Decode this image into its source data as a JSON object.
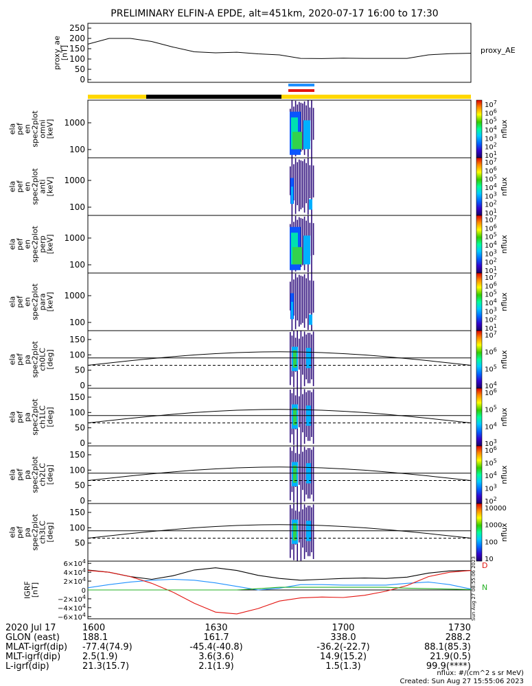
{
  "title": "PRELIMINARY ELFIN-A EPDE, alt=451km, 2020-07-17 16:00 to 17:30",
  "colors": {
    "yellow": "#FFD700",
    "black": "#000000",
    "blue": "#1E90FF",
    "red": "#E3130F",
    "green": "#22B022"
  },
  "proxy_ae": {
    "ylabel": [
      "proxy_ae",
      "[nT]"
    ],
    "yticks": [
      "250",
      "200",
      "150",
      "100",
      "50",
      "0"
    ],
    "ylim": [
      0,
      260
    ],
    "series_label": "proxy_AE",
    "x": [
      0,
      5,
      10,
      15,
      20,
      25,
      30,
      35,
      40,
      45,
      50,
      55,
      60,
      65,
      70,
      75,
      80,
      85,
      90
    ],
    "y": [
      172,
      200,
      200,
      185,
      158,
      135,
      130,
      133,
      125,
      120,
      103,
      102,
      104,
      103,
      103,
      103,
      120,
      126,
      128
    ]
  },
  "spectrum_panels": [
    {
      "name": "omni",
      "ylabel": [
        "ela",
        "pef",
        "en",
        "spec2plot",
        "omni",
        "[keV]"
      ],
      "yticks": [
        "1000",
        "100"
      ],
      "cb_ticks": [
        "10^7",
        "10^6",
        "10^5",
        "10^4",
        "10^3",
        "10^2",
        "10^1"
      ],
      "cb_unit": "nflux"
    },
    {
      "name": "anti",
      "ylabel": [
        "ela",
        "pef",
        "en",
        "spec2plot",
        "anti",
        "[keV]"
      ],
      "yticks": [
        "1000",
        "100"
      ],
      "cb_ticks": [
        "10^7",
        "10^6",
        "10^5",
        "10^4",
        "10^3",
        "10^2",
        "10^1"
      ],
      "cb_unit": "nflux"
    },
    {
      "name": "perp",
      "ylabel": [
        "ela",
        "pef",
        "en",
        "spec2plot",
        "perp",
        "[keV]"
      ],
      "yticks": [
        "1000",
        "100"
      ],
      "cb_ticks": [
        "10^7",
        "10^6",
        "10^5",
        "10^4",
        "10^3",
        "10^2",
        "10^1"
      ],
      "cb_unit": "nflux"
    },
    {
      "name": "para",
      "ylabel": [
        "ela",
        "pef",
        "en",
        "spec2plot",
        "para",
        "[keV]"
      ],
      "yticks": [
        "1000",
        "100"
      ],
      "cb_ticks": [
        "10^7",
        "10^6",
        "10^5",
        "10^4",
        "10^3",
        "10^2",
        "10^1"
      ],
      "cb_unit": "nflux"
    }
  ],
  "pa_panels": [
    {
      "name": "ch0LC",
      "ylabel": [
        "ela",
        "pef",
        "pa",
        "spec2plot",
        "ch0LC",
        "[deg]"
      ],
      "yticks": [
        "150",
        "100",
        "50",
        "0"
      ],
      "cb_ticks": [
        "10^7",
        "10^6",
        "10^5",
        "10^4"
      ],
      "cb_unit": "nflux"
    },
    {
      "name": "ch1LC",
      "ylabel": [
        "ela",
        "pef",
        "pa",
        "spec2plot",
        "ch1LC",
        "[deg]"
      ],
      "yticks": [
        "150",
        "100",
        "50",
        "0"
      ],
      "cb_ticks": [
        "10^6",
        "10^5",
        "10^4",
        "10^3"
      ],
      "cb_unit": "nflux"
    },
    {
      "name": "ch2LC",
      "ylabel": [
        "ela",
        "pef",
        "pa",
        "spec2plot",
        "ch2LC",
        "[deg]"
      ],
      "yticks": [
        "150",
        "100",
        "50",
        "0"
      ],
      "cb_ticks": [
        "10^6",
        "10^5",
        "10^4",
        "10^3",
        "10^2"
      ],
      "cb_unit": "nflux"
    },
    {
      "name": "ch3LC",
      "ylabel": [
        "ela",
        "pef",
        "pa",
        "spec2plot",
        "ch3LC",
        "[deg]"
      ],
      "yticks": [
        "150",
        "100",
        "50"
      ],
      "cb_ticks": [
        "10000",
        "1000",
        "100",
        "10"
      ],
      "cb_unit": "nflux"
    }
  ],
  "igrf": {
    "ylabel": [
      "IGRF",
      "[nT]"
    ],
    "yticks": [
      "6×10^4",
      "4×10^4",
      "2×10^4",
      "0",
      "−2×10^4",
      "−4×10^4",
      "−6×10^4"
    ],
    "ylim": [
      -65000,
      65000
    ],
    "legend": [
      "D",
      "N"
    ],
    "x": [
      0,
      5,
      10,
      15,
      20,
      25,
      30,
      35,
      40,
      45,
      50,
      55,
      60,
      65,
      70,
      75,
      80,
      85,
      90
    ],
    "series": [
      {
        "name": "D",
        "color": "#000000",
        "y": [
          45000,
          40000,
          30000,
          24000,
          32000,
          45000,
          50000,
          44000,
          33000,
          26000,
          22000,
          24000,
          26000,
          27000,
          26000,
          29000,
          38000,
          43000,
          44000
        ]
      },
      {
        "name": "blue",
        "color": "#1E90FF",
        "y": [
          5000,
          12000,
          18000,
          22000,
          24000,
          22000,
          16000,
          8000,
          0,
          4000,
          12000,
          12000,
          11000,
          11000,
          11000,
          15000,
          18000,
          12000,
          2000
        ]
      },
      {
        "name": "red",
        "color": "#E3130F",
        "y": [
          44000,
          40000,
          30000,
          15000,
          -5000,
          -30000,
          -50000,
          -54000,
          -42000,
          -25000,
          -18000,
          -16000,
          -17000,
          -12000,
          -3000,
          10000,
          30000,
          40000,
          44000
        ]
      },
      {
        "name": "green",
        "color": "#22B022",
        "y": [
          0,
          0,
          0,
          0,
          0,
          0,
          0,
          0,
          3000,
          6000,
          6000,
          6000,
          6000,
          6000,
          6000,
          4000,
          3000,
          2000,
          1000
        ]
      }
    ]
  },
  "stamp": "Sun Aug 27 08:55:06 2023",
  "footer": {
    "row0": {
      "label": "2020 Jul 17",
      "v": [
        "1600",
        "1630",
        "1700",
        "1730"
      ]
    },
    "rows": [
      {
        "label": "GLON (east)",
        "v": [
          "188.1",
          "161.7",
          "338.0",
          "288.2"
        ]
      },
      {
        "label": "MLAT-igrf(dip)",
        "v": [
          "-77.4(74.9)",
          "-45.4(-40.8)",
          "-36.2(-22.7)",
          "88.1(85.3)"
        ]
      },
      {
        "label": "MLT-igrf(dip)",
        "v": [
          "2.5(1.9)",
          "3.6(3.6)",
          "14.9(15.2)",
          "21.9(0.5)"
        ]
      },
      {
        "label": "L-igrf(dip)",
        "v": [
          "21.3(15.7)",
          "2.1(1.9)",
          "1.5(1.3)",
          "99.9(****)"
        ]
      }
    ],
    "unit_note": "nflux: #/(cm^2 s sr MeV)",
    "created": "Created: Sun Aug 27 15:55:06 2023"
  }
}
